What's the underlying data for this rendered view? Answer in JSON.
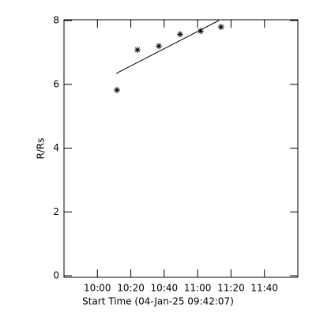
{
  "chart_data": {
    "type": "scatter",
    "x_label": "Start Time (04-Jan-25 09:42:07)",
    "y_label": "R/Rs",
    "xlim": [
      580,
      720
    ],
    "ylim": [
      0,
      8
    ],
    "xticks": [
      {
        "value": 600,
        "label": "10:00"
      },
      {
        "value": 620,
        "label": "10:20"
      },
      {
        "value": 640,
        "label": "10:40"
      },
      {
        "value": 660,
        "label": "11:00"
      },
      {
        "value": 680,
        "label": "11:20"
      },
      {
        "value": 700,
        "label": "11:40"
      }
    ],
    "yticks": [
      0,
      2,
      4,
      6,
      8
    ],
    "series": [
      {
        "color": "#000000",
        "marker": "asterisk",
        "x": [
          611.7,
          624,
          636.8,
          649.5,
          661.8,
          674
        ],
        "values": [
          5.82,
          7.08,
          7.2,
          7.57,
          7.67,
          7.8
        ]
      }
    ],
    "fit": {
      "color": "#000000",
      "x": [
        611.2,
        672.7
      ],
      "values": [
        6.34,
        8.0
      ]
    }
  }
}
